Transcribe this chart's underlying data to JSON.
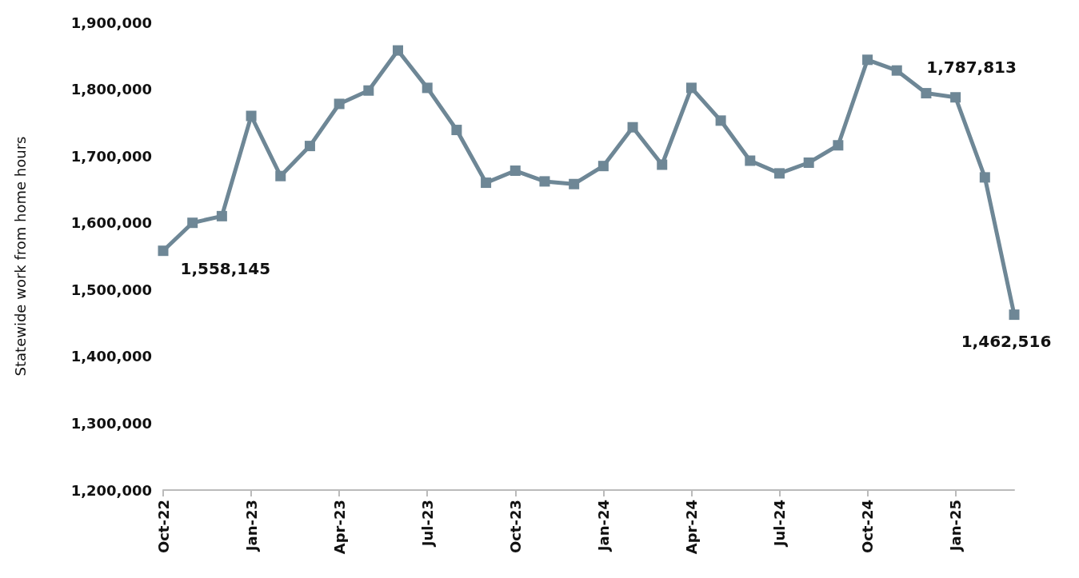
{
  "chart_data": {
    "type": "line",
    "ylabel": "Statewide work from home hours",
    "categories": [
      "Oct-22",
      null,
      null,
      "Jan-23",
      null,
      null,
      "Apr-23",
      null,
      null,
      "Jul-23",
      null,
      null,
      "Oct-23",
      null,
      null,
      "Jan-24",
      null,
      null,
      "Apr-24",
      null,
      null,
      "Jul-24",
      null,
      null,
      "Oct-24",
      null,
      null,
      "Jan-25",
      null,
      null
    ],
    "series": [
      {
        "color": "#6e8796",
        "values": [
          1558145,
          1600000,
          1610000,
          1760000,
          1670000,
          1715000,
          1778000,
          1798000,
          1858000,
          1802000,
          1739000,
          1660000,
          1678000,
          1662000,
          1658000,
          1685000,
          1743000,
          1687000,
          1802000,
          1753000,
          1693000,
          1674000,
          1690000,
          1716000,
          1844000,
          1828000,
          1794000,
          1787813,
          1668000,
          1462516
        ],
        "value_labels": [
          "1,558,145",
          null,
          null,
          null,
          null,
          null,
          null,
          null,
          null,
          null,
          null,
          null,
          null,
          null,
          null,
          null,
          null,
          null,
          null,
          null,
          null,
          null,
          null,
          null,
          null,
          null,
          null,
          "1,787,813",
          null,
          "1,462,516"
        ]
      }
    ],
    "ylim": [
      1200000,
      1900000
    ],
    "yticks": [
      {
        "value": 1200000,
        "label": "1,200,000"
      },
      {
        "value": 1300000,
        "label": "1,300,000"
      },
      {
        "value": 1400000,
        "label": "1,400,000"
      },
      {
        "value": 1500000,
        "label": "1,500,000"
      },
      {
        "value": 1600000,
        "label": "1,600,000"
      },
      {
        "value": 1700000,
        "label": "1,700,000"
      },
      {
        "value": 1800000,
        "label": "1,800,000"
      },
      {
        "value": 1900000,
        "label": "1,900,000"
      }
    ],
    "grid": false,
    "marker": "square",
    "line_style": "solid"
  }
}
